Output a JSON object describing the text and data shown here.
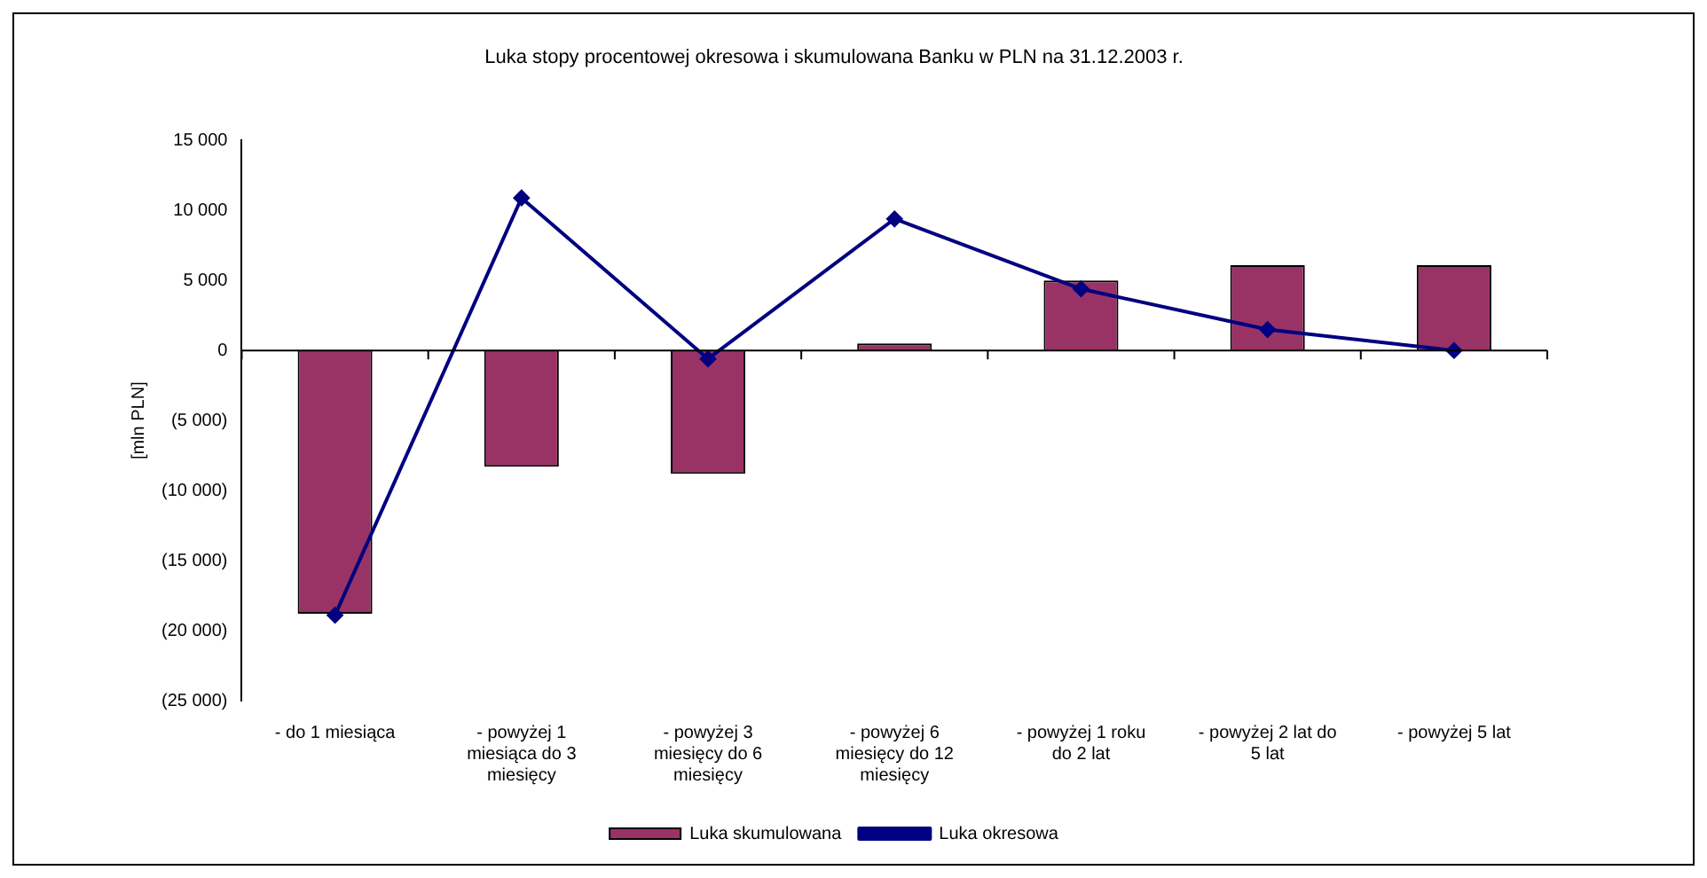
{
  "chart_data": {
    "type": "bar",
    "title": "Luka stopy procentowej okresowa i skumulowana Banku w PLN na 31.12.2003 r.",
    "ylabel": "[mln PLN]",
    "categories": [
      "- do 1 miesiąca",
      "- powyżej 1 miesiąca do 3 miesięcy",
      "- powyżej 3 miesięcy do 6 miesięcy",
      "- powyżej 6 miesięcy do 12 miesięcy",
      "- powyżej 1 roku do 2 lat",
      "- powyżej 2 lat do 5 lat",
      "- powyżej 5 lat"
    ],
    "series": [
      {
        "name": "Luka skumulowana",
        "color": "#993366",
        "values": [
          -18800,
          -8300,
          -8800,
          500,
          5000,
          6100,
          6100
        ]
      },
      {
        "name": "Luka okresowa",
        "type": "line",
        "color": "#000080",
        "marker": "diamond",
        "values": [
          -18900,
          10900,
          -600,
          9400,
          4400,
          1500,
          0
        ]
      }
    ],
    "ylim": [
      -25000,
      15000
    ],
    "yticks": [
      {
        "value": -25000,
        "label": "(25 000)"
      },
      {
        "value": -20000,
        "label": "(20 000)"
      },
      {
        "value": -15000,
        "label": "(15 000)"
      },
      {
        "value": -10000,
        "label": "(10 000)"
      },
      {
        "value": -5000,
        "label": "(5 000)"
      },
      0,
      {
        "value": 5000,
        "label": "5 000"
      },
      {
        "value": 10000,
        "label": "10 000"
      },
      {
        "value": 15000,
        "label": "15 000"
      }
    ],
    "legend": "bottom"
  }
}
